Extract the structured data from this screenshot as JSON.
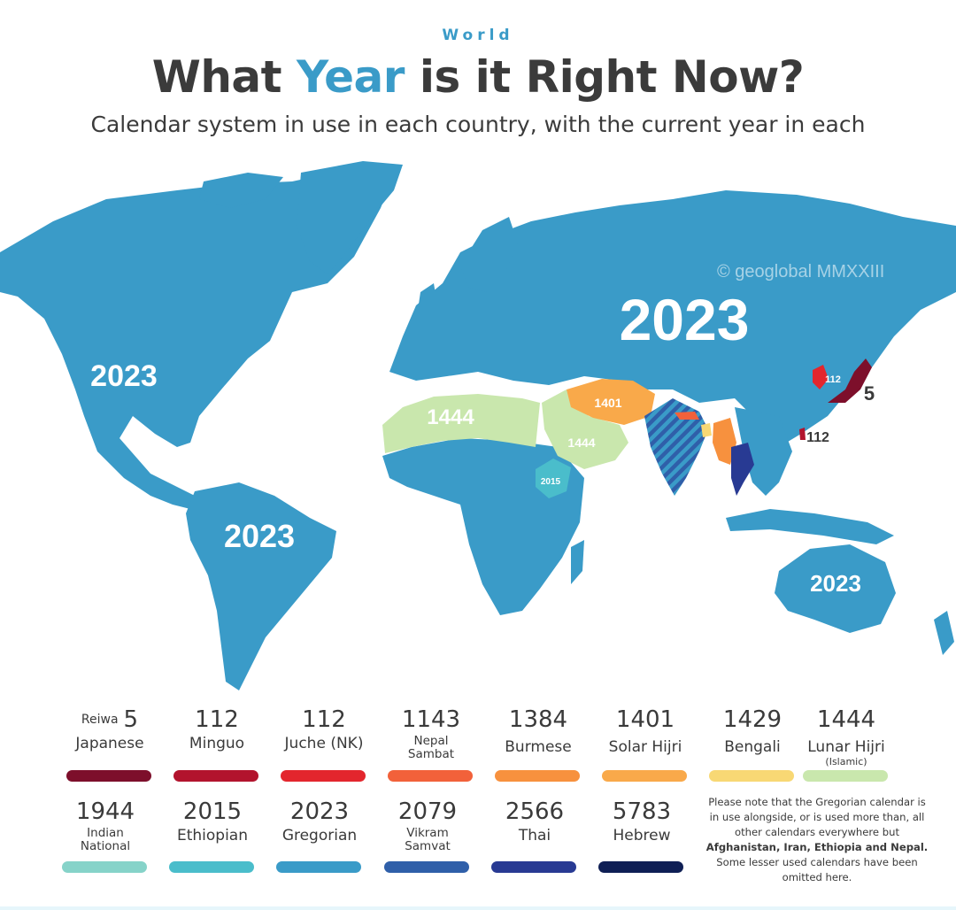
{
  "header": {
    "kicker": "World",
    "title_pre": "What ",
    "title_highlight": "Year",
    "title_post": " is it Right Now?",
    "subtitle": "Calendar system in use in each country, with the current year in each"
  },
  "watermark": "© geoglobal MMXXIII",
  "map_labels": {
    "russia": "2023",
    "north_america": "2023",
    "south_america": "2023",
    "australia": "2023",
    "north_africa": "1444",
    "arabia": "1444",
    "iran": "1401",
    "ethiopia": "2015",
    "north_korea": "112",
    "japan": "5",
    "taiwan": "112"
  },
  "legend": {
    "row1": [
      {
        "prefix": "Reiwa",
        "year": "5",
        "name": "Japanese",
        "sub": "",
        "color": "#7d0f2b"
      },
      {
        "prefix": "",
        "year": "112",
        "name": "Minguo",
        "sub": "",
        "color": "#b2132d"
      },
      {
        "prefix": "",
        "year": "112",
        "name": "Juche (NK)",
        "sub": "",
        "color": "#e3262d"
      },
      {
        "prefix": "",
        "year": "1143",
        "name": "Nepal\nSambat",
        "sub": "",
        "color": "#f2613a"
      },
      {
        "prefix": "",
        "year": "1384",
        "name": "Burmese",
        "sub": "",
        "color": "#f7913e"
      },
      {
        "prefix": "",
        "year": "1401",
        "name": "Solar Hijri",
        "sub": "",
        "color": "#f9a94a"
      },
      {
        "prefix": "",
        "year": "1429",
        "name": "Bengali",
        "sub": "",
        "color": "#f8d874"
      },
      {
        "prefix": "",
        "year": "1444",
        "name": "Lunar Hijri",
        "sub": "(Islamic)",
        "color": "#c9e7ad"
      }
    ],
    "row2": [
      {
        "prefix": "",
        "year": "1944",
        "name": "Indian\nNational",
        "sub": "",
        "color": "#86d3c9"
      },
      {
        "prefix": "",
        "year": "2015",
        "name": "Ethiopian",
        "sub": "",
        "color": "#4abdcb"
      },
      {
        "prefix": "",
        "year": "2023",
        "name": "Gregorian",
        "sub": "",
        "color": "#3a9bc8"
      },
      {
        "prefix": "",
        "year": "2079",
        "name": "Vikram\nSamvat",
        "sub": "",
        "color": "#2f5fa9"
      },
      {
        "prefix": "",
        "year": "2566",
        "name": "Thai",
        "sub": "",
        "color": "#283a93"
      },
      {
        "prefix": "",
        "year": "5783",
        "name": "Hebrew",
        "sub": "",
        "color": "#0f1f55"
      }
    ]
  },
  "note": {
    "text1": "Please note that the Gregorian calendar is in use alongside, or is used more than, all other calendars everywhere but ",
    "bold": "Afghanistan, Iran, Ethiopia and Nepal.",
    "text2": " Some lesser used calendars have been omitted here."
  }
}
